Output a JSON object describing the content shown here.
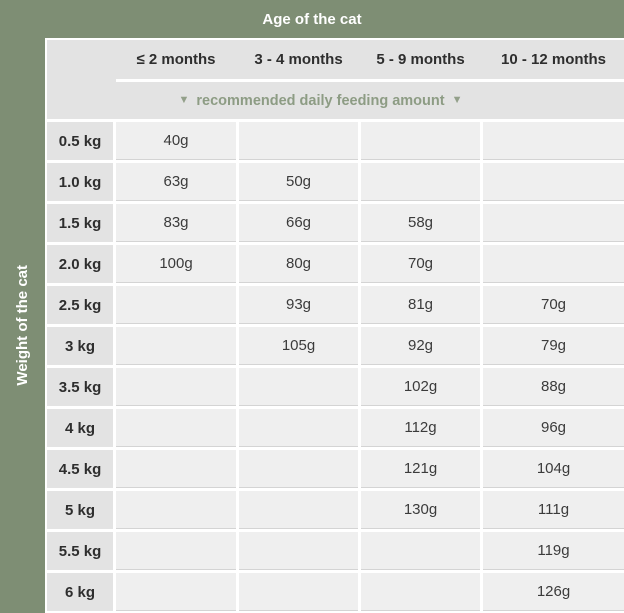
{
  "header": {
    "title": "Age of the cat"
  },
  "side": {
    "title": "Weight of the cat"
  },
  "subheader": {
    "label": "recommended daily feeding amount",
    "arrow": "▼"
  },
  "colors": {
    "accent_green": "#7e8e74",
    "subheader_green": "#8d9c84",
    "header_bg": "#e3e3e3",
    "cell_bg": "#efefef",
    "gap_white": "#ffffff",
    "text_dark": "#2e2e2e"
  },
  "chart_data": {
    "type": "table",
    "title": "Age of the cat",
    "row_axis_label": "Weight of the cat",
    "subtitle": "recommended daily feeding amount",
    "columns": [
      "≤ 2 months",
      "3 - 4 months",
      "5 - 9 months",
      "10 - 12 months"
    ],
    "rows": [
      {
        "weight": "0.5 kg",
        "values": [
          "40g",
          "",
          "",
          ""
        ]
      },
      {
        "weight": "1.0 kg",
        "values": [
          "63g",
          "50g",
          "",
          ""
        ]
      },
      {
        "weight": "1.5 kg",
        "values": [
          "83g",
          "66g",
          "58g",
          ""
        ]
      },
      {
        "weight": "2.0 kg",
        "values": [
          "100g",
          "80g",
          "70g",
          ""
        ]
      },
      {
        "weight": "2.5 kg",
        "values": [
          "",
          "93g",
          "81g",
          "70g"
        ]
      },
      {
        "weight": "3 kg",
        "values": [
          "",
          "105g",
          "92g",
          "79g"
        ]
      },
      {
        "weight": "3.5 kg",
        "values": [
          "",
          "",
          "102g",
          "88g"
        ]
      },
      {
        "weight": "4 kg",
        "values": [
          "",
          "",
          "112g",
          "96g"
        ]
      },
      {
        "weight": "4.5 kg",
        "values": [
          "",
          "",
          "121g",
          "104g"
        ]
      },
      {
        "weight": "5 kg",
        "values": [
          "",
          "",
          "130g",
          "111g"
        ]
      },
      {
        "weight": "5.5 kg",
        "values": [
          "",
          "",
          "",
          "119g"
        ]
      },
      {
        "weight": "6 kg",
        "values": [
          "",
          "",
          "",
          "126g"
        ]
      }
    ]
  }
}
